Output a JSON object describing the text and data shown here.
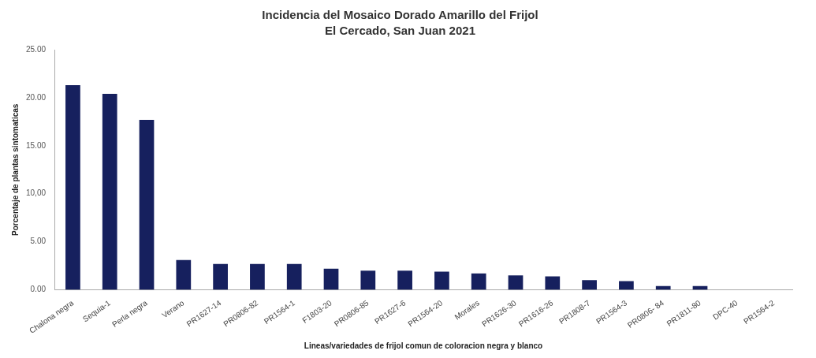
{
  "chart_data": {
    "type": "bar",
    "title": "Incidencia del Mosaico Dorado Amarillo del Frijol",
    "subtitle": "El Cercado, San Juan 2021",
    "xlabel": "Lineas/variedades de frijol comun de coloracion negra y blanco",
    "ylabel": "Porcentaje de plantas sintomaticas",
    "categories": [
      "Chalona negra",
      "Sequia-1",
      "Perla negra",
      "Verano",
      "PR1627-14",
      "PR0806-82",
      "PR1564-1",
      "F1803-20",
      "PR0806-85",
      "PR1627-6",
      "PR1564-20",
      "Morales",
      "PR1626-30",
      "PR1616-26",
      "PR1808-7",
      "PR1564-3",
      "PR0806- 84",
      "PR1811-80",
      "DPC-40",
      "PR1564-2"
    ],
    "values": [
      21.3,
      20.4,
      17.7,
      3.1,
      2.7,
      2.7,
      2.7,
      2.2,
      2.0,
      2.0,
      1.9,
      1.7,
      1.5,
      1.4,
      1.0,
      0.9,
      0.4,
      0.4,
      0,
      0
    ],
    "color": "#16205e",
    "ylim": [
      0,
      25
    ],
    "yticks": [
      {
        "value": 0,
        "label": "0.00"
      },
      {
        "value": 5,
        "label": "5.00"
      },
      {
        "value": 10,
        "label": "10,00"
      },
      {
        "value": 15,
        "label": "15.00"
      },
      {
        "value": 20,
        "label": "20.00"
      },
      {
        "value": 25,
        "label": "25.00"
      }
    ],
    "grid": false,
    "legend": false
  }
}
